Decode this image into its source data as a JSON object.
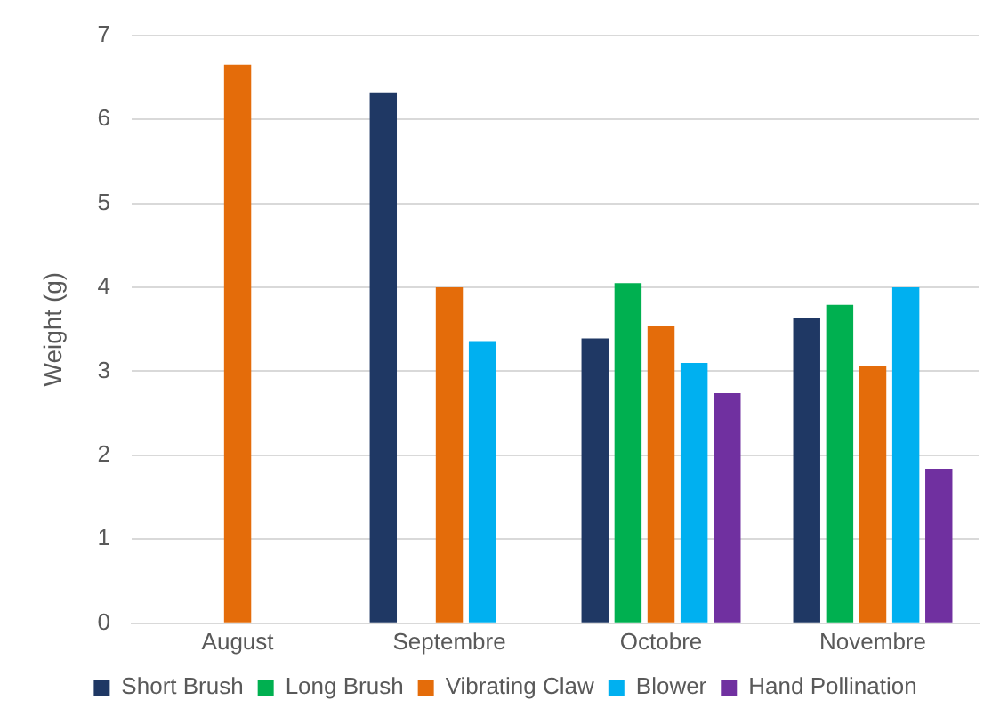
{
  "chart_data": {
    "type": "bar",
    "ylabel": "Weight (g)",
    "categories": [
      "August",
      "Septembre",
      "Octobre",
      "Novembre"
    ],
    "series": [
      {
        "name": "Short Brush",
        "color": "#1f3864",
        "values": [
          null,
          6.32,
          3.39,
          3.63
        ]
      },
      {
        "name": "Long Brush",
        "color": "#00b050",
        "values": [
          null,
          null,
          4.05,
          3.79
        ]
      },
      {
        "name": "Vibrating Claw",
        "color": "#e46c0a",
        "values": [
          6.65,
          4.0,
          3.54,
          3.06
        ]
      },
      {
        "name": "Blower",
        "color": "#00b0f0",
        "values": [
          null,
          3.36,
          3.1,
          4.0
        ]
      },
      {
        "name": "Hand Pollination",
        "color": "#7030a0",
        "values": [
          null,
          null,
          2.74,
          1.84
        ]
      }
    ],
    "ylim": [
      0,
      7
    ],
    "yticks": [
      0,
      1,
      2,
      3,
      4,
      5,
      6,
      7
    ],
    "grid": "y",
    "legend": "bottom"
  }
}
